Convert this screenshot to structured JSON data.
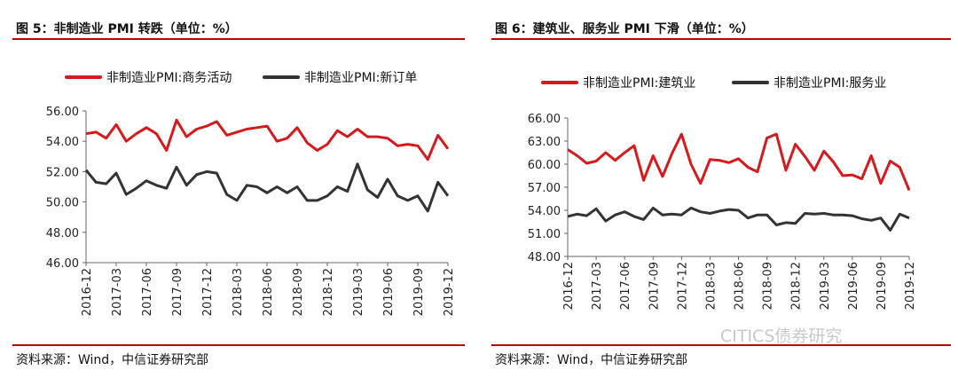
{
  "figures": [
    {
      "title": "图 5：非制造业 PMI 转跌（单位：%）",
      "source": "资料来源：Wind，中信证券研究部"
    },
    {
      "title": "图 6：建筑业、服务业 PMI 下滑（单位：%）",
      "source": "资料来源：Wind，中信证券研究部"
    }
  ],
  "watermark": "CITICS债券研究",
  "chart_data": [
    {
      "type": "line",
      "x_ticks": [
        "2016-12",
        "2017-03",
        "2017-06",
        "2017-09",
        "2017-12",
        "2018-03",
        "2018-06",
        "2018-09",
        "2018-12",
        "2019-03",
        "2019-06",
        "2019-09",
        "2019-12"
      ],
      "x_start": "2016-12",
      "ylim": [
        46,
        56
      ],
      "y_ticks": [
        "46.00",
        "48.00",
        "50.00",
        "52.00",
        "54.00",
        "56.00"
      ],
      "grid": false,
      "legend_position": "top",
      "series": [
        {
          "name": "非制造业PMI:商务活动",
          "color": "#d7191c",
          "values": [
            54.5,
            54.6,
            54.2,
            55.1,
            54.0,
            54.5,
            54.9,
            54.5,
            53.4,
            55.4,
            54.3,
            54.8,
            55.0,
            55.3,
            54.4,
            54.6,
            54.8,
            54.9,
            55.0,
            54.0,
            54.2,
            54.9,
            53.9,
            53.4,
            53.8,
            54.7,
            54.3,
            54.8,
            54.3,
            54.3,
            54.2,
            53.7,
            53.8,
            53.7,
            52.8,
            54.4,
            53.5
          ]
        },
        {
          "name": "非制造业PMI:新订单",
          "color": "#333333",
          "values": [
            52.1,
            51.3,
            51.2,
            51.9,
            50.5,
            50.9,
            51.4,
            51.1,
            50.9,
            52.3,
            51.1,
            51.8,
            52.0,
            51.9,
            50.5,
            50.1,
            51.1,
            51.0,
            50.6,
            51.0,
            50.6,
            51.0,
            50.1,
            50.1,
            50.4,
            51.0,
            50.7,
            52.5,
            50.8,
            50.3,
            51.5,
            50.4,
            50.1,
            50.4,
            49.4,
            51.3,
            50.4
          ]
        }
      ]
    },
    {
      "type": "line",
      "x_ticks": [
        "2016-12",
        "2017-03",
        "2017-06",
        "2017-09",
        "2017-12",
        "2018-03",
        "2018-06",
        "2018-09",
        "2018-12",
        "2019-03",
        "2019-06",
        "2019-09",
        "2019-12"
      ],
      "x_start": "2016-12",
      "ylim": [
        48,
        66
      ],
      "y_ticks": [
        "48.00",
        "51.00",
        "54.00",
        "57.00",
        "60.00",
        "63.00",
        "66.00"
      ],
      "grid": false,
      "legend_position": "top",
      "series": [
        {
          "name": "非制造业PMI:建筑业",
          "color": "#d7191c",
          "values": [
            61.9,
            61.1,
            60.1,
            60.4,
            61.5,
            60.5,
            61.5,
            62.4,
            57.9,
            61.1,
            58.4,
            61.4,
            63.9,
            60.0,
            57.5,
            60.6,
            60.5,
            60.2,
            60.7,
            59.6,
            59.0,
            63.4,
            63.9,
            59.2,
            62.6,
            61.0,
            59.2,
            61.7,
            60.3,
            58.5,
            58.6,
            58.1,
            61.1,
            57.5,
            60.4,
            59.6,
            56.6
          ]
        },
        {
          "name": "非制造业PMI:服务业",
          "color": "#333333",
          "values": [
            53.2,
            53.5,
            53.3,
            54.2,
            52.6,
            53.4,
            53.8,
            53.2,
            52.8,
            54.3,
            53.4,
            53.5,
            53.4,
            54.3,
            53.8,
            53.6,
            53.9,
            54.1,
            54.0,
            53.0,
            53.4,
            53.4,
            52.1,
            52.4,
            52.3,
            53.6,
            53.5,
            53.6,
            53.4,
            53.4,
            53.3,
            52.9,
            52.7,
            53.0,
            51.4,
            53.5,
            53.0
          ]
        }
      ]
    }
  ]
}
